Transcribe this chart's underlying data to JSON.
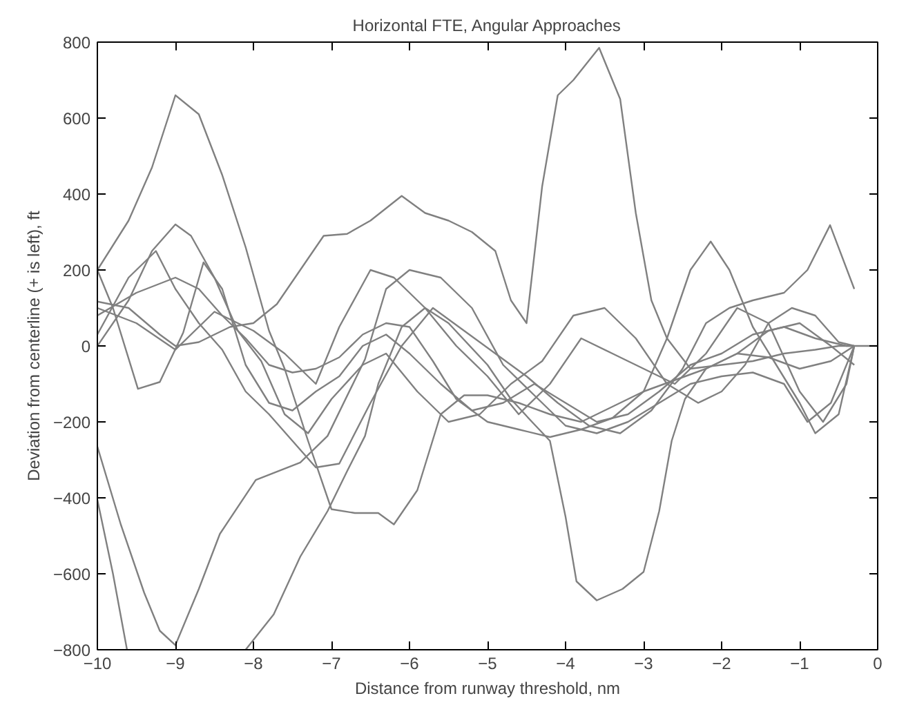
{
  "chart_data": {
    "type": "line",
    "title": "Horizontal FTE, Angular Approaches",
    "xlabel": "Distance from runway threshold, nm",
    "ylabel": "Deviation from centerline (+ is left), ft",
    "xlim": [
      -10,
      0
    ],
    "ylim": [
      -800,
      800
    ],
    "xticks": [
      -10,
      -9,
      -8,
      -7,
      -6,
      -5,
      -4,
      -3,
      -2,
      -1,
      0
    ],
    "yticks": [
      -800,
      -600,
      -400,
      -200,
      0,
      200,
      400,
      600,
      800
    ],
    "grid": false,
    "line_style": "solid",
    "series": [
      {
        "color": "#808080",
        "x": [
          -10,
          -9.6,
          -9.3,
          -9,
          -8.7,
          -8.4,
          -8.1,
          -7.8,
          -7.6,
          -7.3,
          -7.0,
          -6.7,
          -6.4,
          -6.2,
          -5.9,
          -5.6,
          -5.3,
          -5.0,
          -4.6,
          -4.2,
          -3.8,
          -3.4,
          -3.0,
          -2.6,
          -2.2,
          -1.8,
          -1.4,
          -1.0,
          -0.6,
          -0.3
        ],
        "values": [
          200,
          330,
          470,
          660,
          610,
          450,
          260,
          40,
          -60,
          -250,
          -430,
          -440,
          -440,
          -470,
          -380,
          -180,
          -130,
          -130,
          -150,
          -180,
          -200,
          -160,
          -120,
          -90,
          -60,
          -20,
          -30,
          -60,
          -40,
          0
        ]
      },
      {
        "color": "#808080",
        "x": [
          -10,
          -9.6,
          -9.2,
          -9.0,
          -8.7,
          -8.3,
          -8.0,
          -7.7,
          -7.4,
          -7.1,
          -6.8,
          -6.5,
          -6.1,
          -5.8,
          -5.5,
          -5.2,
          -4.9,
          -4.7,
          -4.5,
          -4.3,
          -4.1,
          -3.9,
          -3.57,
          -3.3,
          -3.1,
          -2.9,
          -2.7,
          -2.4,
          -2.0,
          -1.6,
          -1.2,
          -0.8,
          -0.5,
          -0.3
        ],
        "values": [
          117,
          100,
          30,
          0,
          10,
          50,
          60,
          110,
          200,
          290,
          295,
          330,
          395,
          350,
          330,
          300,
          250,
          120,
          60,
          420,
          660,
          700,
          785,
          650,
          350,
          120,
          20,
          -60,
          -50,
          -40,
          -20,
          -10,
          0,
          0
        ]
      },
      {
        "color": "#808080",
        "x": [
          -10,
          -9.8,
          -9.62,
          -8.9,
          -8.1,
          -7.74,
          -7.4,
          -7.05,
          -6.8,
          -6.57,
          -6.4,
          -6.1,
          -5.8,
          -5.5,
          -5.0,
          -4.7,
          -4.43,
          -4.2,
          -4.0,
          -3.86,
          -3.6,
          -3.27,
          -3.0,
          -2.8,
          -2.64,
          -2.47,
          -2.2,
          -1.8,
          -1.4,
          -1.0,
          -0.6,
          -0.3
        ],
        "values": [
          -405,
          -600,
          -800,
          null,
          -800,
          -707,
          -555,
          -435,
          -330,
          -237,
          -100,
          50,
          100,
          60,
          -50,
          -140,
          -200,
          -250,
          -450,
          -620,
          -670,
          -640,
          -595,
          -435,
          -250,
          -140,
          -60,
          -20,
          40,
          60,
          0,
          -50
        ]
      },
      {
        "color": "#808080",
        "x": [
          -10,
          -9.7,
          -9.4,
          -9.2,
          -9.0,
          -8.7,
          -8.43,
          -7.97,
          -7.4,
          -7.05,
          -6.57,
          -6.3,
          -6.0,
          -5.6,
          -5.2,
          -4.8,
          -4.4,
          -4.0,
          -3.6,
          -3.2,
          -2.8,
          -2.4,
          -2.0,
          -1.6,
          -1.2,
          -0.9,
          -0.6,
          -0.3
        ],
        "values": [
          -265,
          -470,
          -650,
          -750,
          -788,
          -640,
          -495,
          -353,
          -307,
          -237,
          -35,
          150,
          200,
          180,
          100,
          -50,
          -130,
          -210,
          -230,
          -200,
          -150,
          -100,
          -80,
          -70,
          -100,
          -200,
          -150,
          0
        ]
      },
      {
        "color": "#808080",
        "x": [
          -10,
          -9.8,
          -9.48,
          -9.2,
          -8.9,
          -8.64,
          -8.4,
          -8.1,
          -7.8,
          -7.5,
          -7.2,
          -6.9,
          -6.6,
          -6.3,
          -6.0,
          -5.6,
          -5.2,
          -4.8,
          -4.4,
          -4.0,
          -3.6,
          -3.2,
          -2.8,
          -2.4,
          -2.0,
          -1.6,
          -1.2,
          -0.8,
          -0.4,
          -0.3
        ],
        "values": [
          200,
          100,
          -113,
          -95,
          35,
          220,
          150,
          -50,
          -150,
          -170,
          -120,
          -80,
          0,
          30,
          -20,
          -100,
          -170,
          -150,
          -100,
          -150,
          -200,
          -180,
          -120,
          -50,
          -20,
          30,
          50,
          20,
          0,
          0
        ]
      },
      {
        "color": "#808080",
        "x": [
          -10,
          -9.6,
          -9.3,
          -9,
          -8.8,
          -8.5,
          -8.2,
          -7.9,
          -7.6,
          -7.3,
          -7.0,
          -6.6,
          -6.3,
          -5.9,
          -5.5,
          -5.1,
          -4.7,
          -4.3,
          -3.9,
          -3.5,
          -3.1,
          -2.7,
          -2.3,
          -2.0,
          -1.7,
          -1.4,
          -1.1,
          -0.8,
          -0.5,
          -0.3,
          0
        ],
        "values": [
          0,
          120,
          250,
          320,
          290,
          180,
          40,
          -40,
          -180,
          -230,
          -140,
          -50,
          -20,
          -120,
          -200,
          -180,
          -100,
          -40,
          80,
          100,
          20,
          -100,
          -150,
          -120,
          -50,
          60,
          100,
          80,
          10,
          0,
          0
        ]
      },
      {
        "color": "#808080",
        "x": [
          -10,
          -9.6,
          -9.25,
          -9.0,
          -8.7,
          -8.4,
          -8.1,
          -7.8,
          -7.5,
          -7.2,
          -6.9,
          -6.5,
          -6.1,
          -5.7,
          -5.3,
          -4.9,
          -4.5,
          -4.1,
          -3.7,
          -3.3,
          -2.9,
          -2.5,
          -2.2,
          -1.9,
          -1.6,
          -1.2,
          -0.9,
          -0.61,
          -0.3
        ],
        "values": [
          30,
          180,
          250,
          150,
          60,
          -10,
          -120,
          -180,
          -250,
          -320,
          -310,
          -150,
          0,
          100,
          40,
          -20,
          -80,
          -150,
          -210,
          -230,
          -170,
          -60,
          60,
          100,
          120,
          140,
          200,
          318,
          150
        ]
      },
      {
        "color": "#808080",
        "x": [
          -10,
          -9.5,
          -9,
          -8.7,
          -8.4,
          -8.1,
          -7.8,
          -7.5,
          -7.2,
          -6.9,
          -6.6,
          -6.3,
          -6.0,
          -5.7,
          -5.4,
          -5.0,
          -4.6,
          -4.2,
          -3.8,
          -3.4,
          -3.0,
          -2.7,
          -2.4,
          -2.14,
          -1.9,
          -1.6,
          -1.3,
          -1.0,
          -0.8,
          -0.5,
          -0.3
        ],
        "values": [
          80,
          140,
          180,
          150,
          80,
          20,
          -50,
          -70,
          -60,
          -30,
          30,
          60,
          50,
          -40,
          -140,
          -200,
          -220,
          -240,
          -220,
          -190,
          -120,
          20,
          200,
          275,
          200,
          50,
          -50,
          -150,
          -230,
          -180,
          0
        ]
      },
      {
        "color": "#808080",
        "x": [
          -10,
          -9.5,
          -9,
          -8.5,
          -8.0,
          -7.6,
          -7.2,
          -6.9,
          -6.5,
          -6.2,
          -5.8,
          -5.4,
          -5.0,
          -4.6,
          -4.2,
          -3.8,
          -3.4,
          -3.0,
          -2.6,
          -2.2,
          -1.8,
          -1.4,
          -1.0,
          -0.7,
          -0.4,
          -0.3
        ],
        "values": [
          100,
          60,
          -10,
          90,
          40,
          -20,
          -100,
          50,
          200,
          180,
          100,
          0,
          -80,
          -180,
          -100,
          20,
          -20,
          -60,
          -100,
          -20,
          100,
          60,
          -120,
          -200,
          -100,
          0
        ]
      }
    ]
  }
}
